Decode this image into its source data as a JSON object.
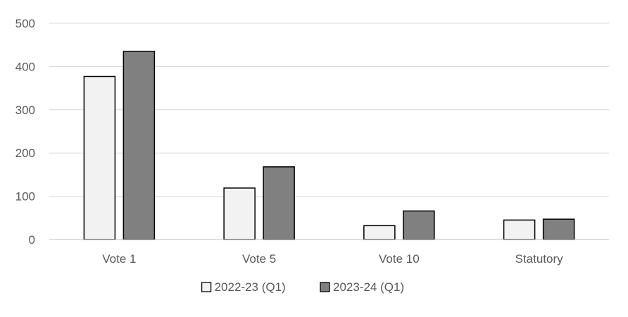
{
  "chart_data": {
    "type": "bar",
    "title": "",
    "xlabel": "",
    "ylabel": "",
    "categories": [
      "Vote 1",
      "Vote 5",
      "Vote 10",
      "Statutory"
    ],
    "series": [
      {
        "name": "2022-23 (Q1)",
        "values": [
          377,
          119,
          32,
          45
        ],
        "color": "#f2f2f2"
      },
      {
        "name": "2023-24 (Q1)",
        "values": [
          435,
          168,
          66,
          47
        ],
        "color": "#808080"
      }
    ],
    "ylim": [
      0,
      500
    ],
    "yticks": [
      0,
      100,
      200,
      300,
      400,
      500
    ],
    "grid": true,
    "legend_position": "bottom",
    "bar_edge_color": "#000000",
    "grid_color": "#d9d9d9"
  }
}
